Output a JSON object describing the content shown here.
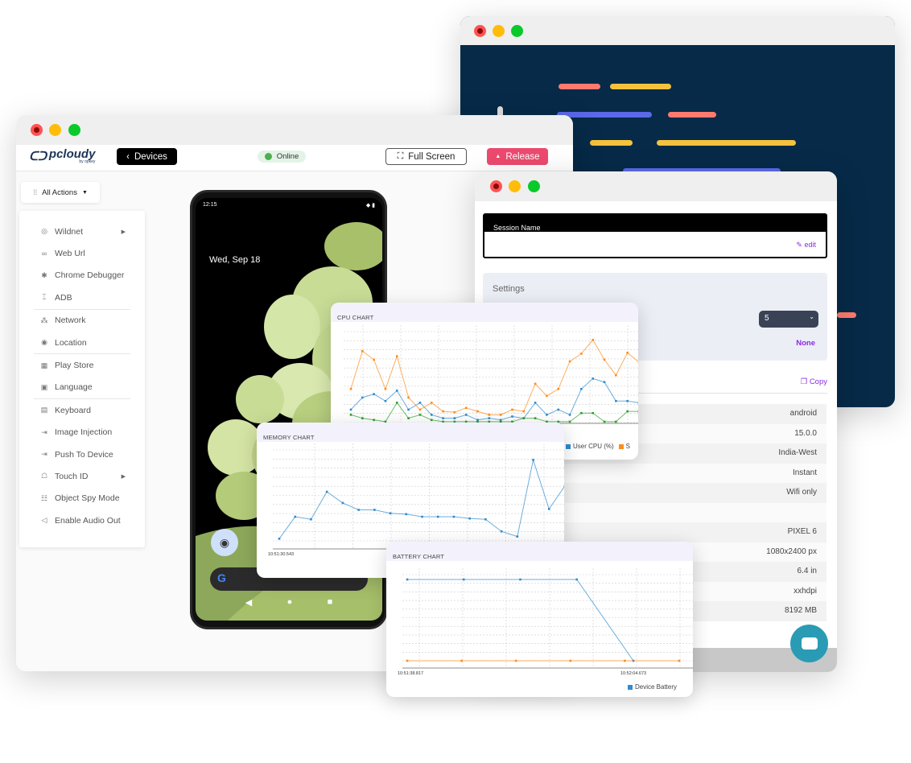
{
  "colors": {
    "code_bg": "#062a48",
    "release": "#ec4a6e",
    "online_bg": "#e3f3e6",
    "online_dot": "#4caf50",
    "accent_purple": "#8a2be2",
    "chat": "#2a9bb5",
    "cpu_user": "#2e8bcf",
    "cpu_orange": "#ff8c1a",
    "cpu_green": "#2ca02c"
  },
  "code_window": {
    "bars": [
      {
        "color": "#ff7a6e"
      },
      {
        "color": "#f5c23c"
      },
      {
        "color": "#5b68e8"
      },
      {
        "color": "#ff7a6e"
      },
      {
        "color": "#f5c23c"
      },
      {
        "color": "#f5c23c"
      },
      {
        "color": "#5b68e8"
      },
      {
        "color": "#ff7a6e"
      }
    ]
  },
  "main": {
    "logo": "pcloudy",
    "logo_sub": "by opkey",
    "devices_label": "Devices",
    "status": "Online",
    "fullscreen_label": "Full Screen",
    "release_label": "Release",
    "all_actions": "All Actions",
    "menu": [
      {
        "label": "Wildnet",
        "icon": "wildnet-icon",
        "glyph": "◎",
        "submenu": true
      },
      {
        "label": "Web Url",
        "icon": "link-icon",
        "glyph": "∞"
      },
      {
        "label": "Chrome Debugger",
        "icon": "bug-icon",
        "glyph": "✱"
      },
      {
        "label": "ADB",
        "icon": "adb-icon",
        "glyph": "⌶"
      },
      {
        "label": "Network",
        "icon": "network-icon",
        "glyph": "⁂",
        "sep_before": true
      },
      {
        "label": "Location",
        "icon": "location-pin-icon",
        "glyph": "◉"
      },
      {
        "label": "Play Store",
        "icon": "apps-grid-icon",
        "glyph": "▦",
        "sep_before": true
      },
      {
        "label": "Language",
        "icon": "language-icon",
        "glyph": "▣"
      },
      {
        "label": "Keyboard",
        "icon": "keyboard-icon",
        "glyph": "▤",
        "sep_before": true
      },
      {
        "label": "Image Injection",
        "icon": "image-injection-icon",
        "glyph": "⇥"
      },
      {
        "label": "Push To Device",
        "icon": "push-icon",
        "glyph": "⇥"
      },
      {
        "label": "Touch ID",
        "icon": "fingerprint-icon",
        "glyph": "☖",
        "submenu": true
      },
      {
        "label": "Object Spy Mode",
        "icon": "spy-icon",
        "glyph": "☷"
      },
      {
        "label": "Enable Audio Out",
        "icon": "speaker-icon",
        "glyph": "◁"
      }
    ],
    "phone": {
      "time": "12:15",
      "date": "Wed, Sep 18"
    }
  },
  "session": {
    "session_name_label": "Session Name",
    "edit_label": "edit",
    "settings_label": "Settings",
    "select_value": "5",
    "none_label": "None",
    "copy_label": "Copy",
    "rows": [
      "android",
      "15.0.0",
      "India-West",
      "Instant",
      "Wifi only",
      "",
      "PIXEL 6",
      "1080x2400 px",
      "6.4 in",
      "xxhdpi",
      "8192 MB"
    ]
  },
  "chart_data": [
    {
      "type": "line",
      "title": "CPU CHART",
      "ylim": [
        0,
        100
      ],
      "grid": true,
      "legend": "bottom-right",
      "series": [
        {
          "name": "User CPU (%)",
          "color": "#2e8bcf",
          "values": [
            15,
            29,
            33,
            25,
            37,
            15,
            23,
            9,
            5,
            5,
            9,
            3,
            5,
            3,
            7,
            5,
            23,
            9,
            15,
            9,
            39,
            51,
            47,
            25,
            25,
            23
          ]
        },
        {
          "name": "S",
          "color": "#ff8c1a",
          "values": [
            39,
            83,
            73,
            39,
            77,
            29,
            15,
            23,
            13,
            12,
            17,
            13,
            9,
            9,
            15,
            13,
            45,
            31,
            39,
            71,
            80,
            96,
            73,
            55,
            81,
            70
          ]
        },
        {
          "color": "#2ca02c",
          "values": [
            9,
            5,
            3,
            1,
            23,
            5,
            9,
            3,
            1,
            1,
            1,
            1,
            1,
            1,
            1,
            5,
            5,
            1,
            1,
            1,
            11,
            11,
            1,
            1,
            13,
            13
          ]
        }
      ]
    },
    {
      "type": "line",
      "title": "MEMORY CHART",
      "ylim": [
        0,
        100
      ],
      "grid": true,
      "x_tick_labels": [
        "10:51:30.543"
      ],
      "series": [
        {
          "color": "#2e8bcf",
          "values": [
            2.5,
            28,
            25,
            57,
            44,
            36,
            36,
            32,
            31,
            28,
            28,
            28,
            26,
            25,
            11,
            5,
            94,
            37,
            64
          ]
        }
      ]
    },
    {
      "type": "line",
      "title": "BATTERY CHART",
      "ylim": [
        0,
        100
      ],
      "grid": true,
      "legend": "bottom-right",
      "x_tick_labels": [
        "10:51:38.817",
        "10:52:04.673"
      ],
      "series": [
        {
          "name": "Device Battery",
          "color": "#2e8bcf",
          "values": [
            100,
            100,
            100,
            100,
            0
          ]
        },
        {
          "color": "#ff8c1a",
          "values": [
            0,
            0,
            0,
            0,
            0,
            0
          ]
        }
      ]
    }
  ]
}
